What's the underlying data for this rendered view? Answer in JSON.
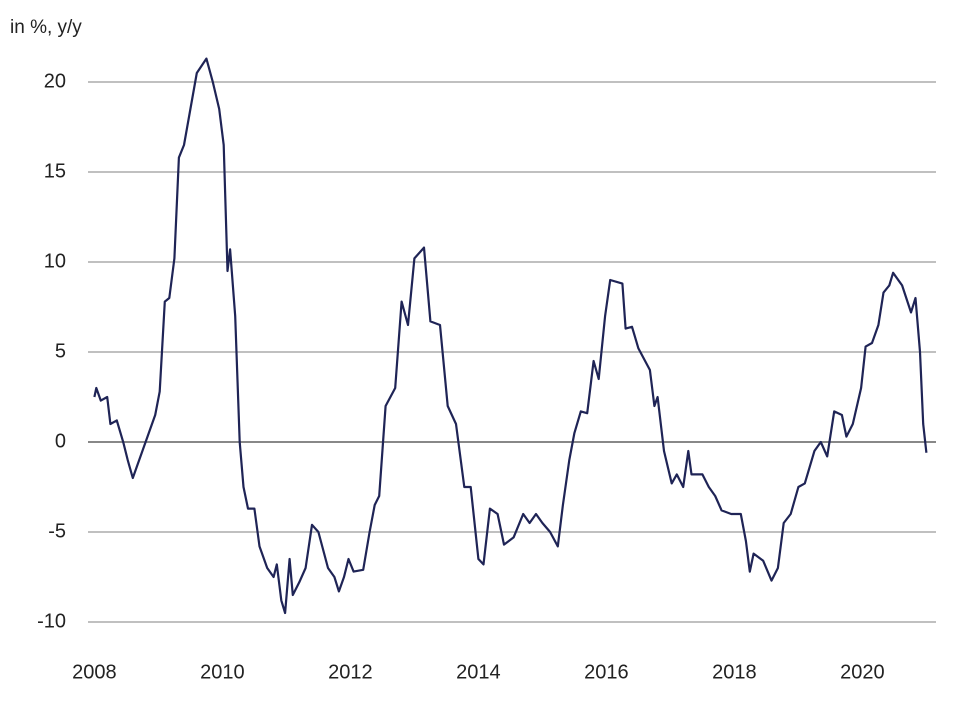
{
  "chart_data": {
    "type": "line",
    "title": "in %, y/y",
    "color": "#1f2456",
    "grid": true,
    "xlim": [
      2007.9,
      2021.15
    ],
    "xticks": [
      2008,
      2010,
      2012,
      2014,
      2016,
      2018,
      2020
    ],
    "ylim": [
      -11,
      23
    ],
    "yticks": [
      -10,
      -5,
      0,
      5,
      10,
      15,
      20
    ],
    "x": [
      2008.0,
      2008.03,
      2008.1,
      2008.2,
      2008.25,
      2008.35,
      2008.45,
      2008.52,
      2008.6,
      2008.75,
      2008.85,
      2008.95,
      2009.02,
      2009.1,
      2009.17,
      2009.25,
      2009.32,
      2009.4,
      2009.5,
      2009.6,
      2009.75,
      2009.85,
      2009.95,
      2010.02,
      2010.08,
      2010.12,
      2010.2,
      2010.27,
      2010.33,
      2010.4,
      2010.5,
      2010.58,
      2010.7,
      2010.8,
      2010.85,
      2010.92,
      2010.98,
      2011.05,
      2011.1,
      2011.2,
      2011.3,
      2011.4,
      2011.5,
      2011.65,
      2011.75,
      2011.82,
      2011.9,
      2011.97,
      2012.05,
      2012.2,
      2012.3,
      2012.38,
      2012.45,
      2012.55,
      2012.7,
      2012.8,
      2012.9,
      2013.0,
      2013.15,
      2013.25,
      2013.4,
      2013.52,
      2013.65,
      2013.78,
      2013.88,
      2014.0,
      2014.08,
      2014.18,
      2014.3,
      2014.4,
      2014.55,
      2014.7,
      2014.8,
      2014.9,
      2015.0,
      2015.12,
      2015.24,
      2015.32,
      2015.42,
      2015.5,
      2015.6,
      2015.7,
      2015.8,
      2015.88,
      2015.98,
      2016.06,
      2016.25,
      2016.3,
      2016.4,
      2016.5,
      2016.68,
      2016.75,
      2016.8,
      2016.9,
      2017.02,
      2017.1,
      2017.2,
      2017.28,
      2017.33,
      2017.5,
      2017.6,
      2017.7,
      2017.8,
      2017.95,
      2018.1,
      2018.18,
      2018.24,
      2018.3,
      2018.45,
      2018.58,
      2018.68,
      2018.77,
      2018.88,
      2019.0,
      2019.1,
      2019.25,
      2019.35,
      2019.45,
      2019.56,
      2019.68,
      2019.75,
      2019.85,
      2019.98,
      2020.05,
      2020.15,
      2020.25,
      2020.33,
      2020.42,
      2020.48,
      2020.62,
      2020.76,
      2020.83,
      2020.9,
      2020.95,
      2021.0
    ],
    "values": [
      2.5,
      3.0,
      2.3,
      2.5,
      1.0,
      1.2,
      0.0,
      -1.0,
      -2.0,
      -0.5,
      0.5,
      1.5,
      2.8,
      7.8,
      8.0,
      10.2,
      15.8,
      16.5,
      18.5,
      20.5,
      21.3,
      20.0,
      18.5,
      16.5,
      9.5,
      10.7,
      7.0,
      0.0,
      -2.5,
      -3.7,
      -3.7,
      -5.8,
      -7.0,
      -7.5,
      -6.8,
      -8.8,
      -9.5,
      -6.5,
      -8.5,
      -7.8,
      -7.0,
      -4.6,
      -5.0,
      -7.0,
      -7.5,
      -8.3,
      -7.5,
      -6.5,
      -7.2,
      -7.1,
      -5.0,
      -3.5,
      -3.0,
      2.0,
      3.0,
      7.8,
      6.5,
      10.2,
      10.8,
      6.7,
      6.5,
      2.0,
      1.0,
      -2.5,
      -2.5,
      -6.5,
      -6.8,
      -3.7,
      -4.0,
      -5.7,
      -5.3,
      -4.0,
      -4.5,
      -4.0,
      -4.5,
      -5.0,
      -5.8,
      -3.5,
      -1.0,
      0.5,
      1.7,
      1.6,
      4.5,
      3.5,
      7.0,
      9.0,
      8.8,
      6.3,
      6.4,
      5.2,
      4.0,
      2.0,
      2.5,
      -0.5,
      -2.3,
      -1.8,
      -2.5,
      -0.5,
      -1.8,
      -1.8,
      -2.5,
      -3.0,
      -3.8,
      -4.0,
      -4.0,
      -5.5,
      -7.2,
      -6.2,
      -6.6,
      -7.7,
      -7.0,
      -4.5,
      -4.0,
      -2.5,
      -2.3,
      -0.5,
      0.0,
      -0.8,
      1.7,
      1.5,
      0.3,
      1.0,
      3.0,
      5.3,
      5.5,
      6.5,
      8.3,
      8.7,
      9.4,
      8.7,
      7.2,
      8.0,
      5.0,
      1.0,
      -0.6
    ]
  }
}
